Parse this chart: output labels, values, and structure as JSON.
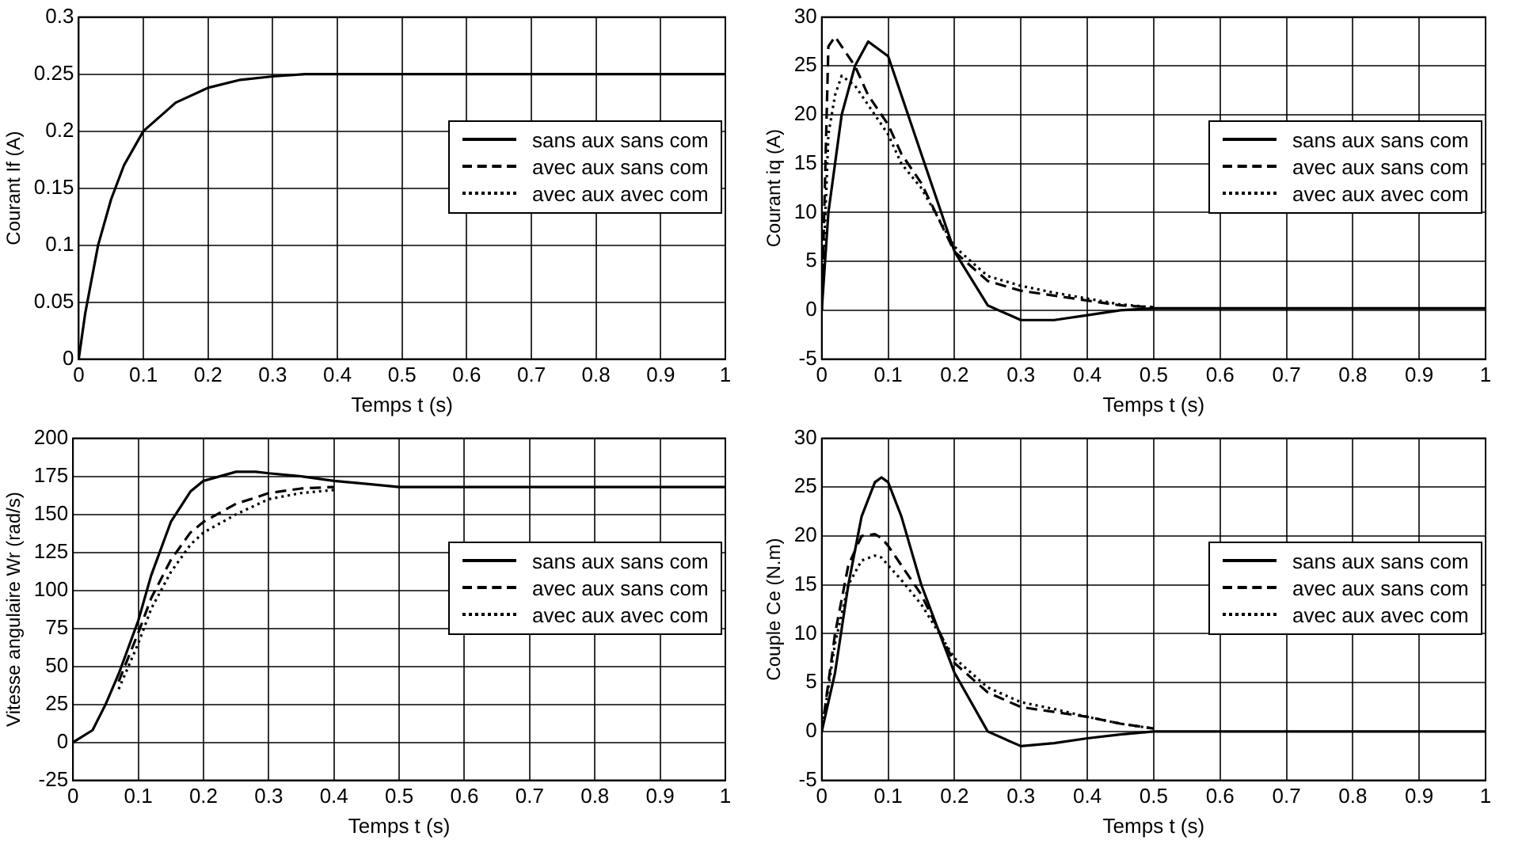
{
  "chart_data": [
    {
      "type": "line",
      "xlabel": "Temps t (s)",
      "ylabel": "Courant If (A)",
      "x": [
        0,
        0.01,
        0.02,
        0.03,
        0.05,
        0.07,
        0.1,
        0.15,
        0.2,
        0.25,
        0.3,
        0.35,
        0.4,
        0.5,
        0.6,
        0.7,
        0.8,
        0.9,
        1
      ],
      "xlim": [
        0,
        1
      ],
      "xticks": [
        0,
        0.1,
        0.2,
        0.3,
        0.4,
        0.5,
        0.6,
        0.7,
        0.8,
        0.9,
        1
      ],
      "ylim": [
        0,
        0.3
      ],
      "yticks": [
        0,
        0.05,
        0.1,
        0.15,
        0.2,
        0.25,
        0.3
      ],
      "grid": true,
      "legend": "right",
      "marker": "none",
      "series": [
        {
          "name": "sans aux sans com",
          "color": "#000000",
          "line_style": "solid",
          "values": [
            0,
            0.04,
            0.07,
            0.1,
            0.14,
            0.17,
            0.2,
            0.225,
            0.238,
            0.245,
            0.248,
            0.25,
            0.25,
            0.25,
            0.25,
            0.25,
            0.25,
            0.25,
            0.25
          ]
        },
        {
          "name": "avec aux sans com",
          "color": "#000000",
          "line_style": "dashed",
          "values": [
            null,
            null,
            null,
            null,
            null,
            null,
            null,
            null,
            null,
            null,
            null,
            null,
            null,
            null,
            null,
            null,
            null,
            null,
            null
          ]
        },
        {
          "name": "avec aux avec com",
          "color": "#000000",
          "line_style": "dotted",
          "values": [
            null,
            null,
            null,
            null,
            null,
            null,
            null,
            null,
            null,
            null,
            null,
            null,
            null,
            null,
            null,
            null,
            null,
            null,
            null
          ]
        }
      ]
    },
    {
      "type": "line",
      "xlabel": "Temps t (s)",
      "ylabel": "Courant iq (A)",
      "x": [
        0,
        0.01,
        0.02,
        0.03,
        0.05,
        0.07,
        0.1,
        0.12,
        0.15,
        0.2,
        0.25,
        0.3,
        0.35,
        0.4,
        0.45,
        0.5,
        0.6,
        0.7,
        0.8,
        0.9,
        1
      ],
      "xlim": [
        0,
        1
      ],
      "xticks": [
        0,
        0.1,
        0.2,
        0.3,
        0.4,
        0.5,
        0.6,
        0.7,
        0.8,
        0.9,
        1
      ],
      "ylim": [
        -5,
        30
      ],
      "yticks": [
        -5,
        0,
        5,
        10,
        15,
        20,
        25,
        30
      ],
      "grid": true,
      "legend": "right",
      "marker": "none",
      "series": [
        {
          "name": "sans aux sans com",
          "color": "#000000",
          "line_style": "solid",
          "values": [
            0,
            10,
            15,
            20,
            25,
            27.5,
            26,
            22,
            16,
            6,
            0.5,
            -1,
            -1,
            -0.5,
            0,
            0.2,
            0.2,
            0.2,
            0.2,
            0.2,
            0.2
          ]
        },
        {
          "name": "avec aux sans com",
          "color": "#000000",
          "line_style": "dashed",
          "values": [
            0,
            27,
            28,
            27,
            25,
            22,
            19,
            16,
            13,
            6,
            3,
            2,
            1.5,
            1,
            0.5,
            0.3,
            null,
            null,
            null,
            null,
            null
          ]
        },
        {
          "name": "avec aux avec com",
          "color": "#000000",
          "line_style": "dotted",
          "values": [
            0,
            18,
            22,
            24,
            23,
            21,
            18,
            15,
            12.5,
            6.5,
            3.5,
            2.5,
            1.8,
            1.2,
            0.6,
            0.3,
            null,
            null,
            null,
            null,
            null
          ]
        }
      ]
    },
    {
      "type": "line",
      "xlabel": "Temps t (s)",
      "ylabel": "Vitesse angulaire Wr (rad/s)",
      "x": [
        0,
        0.03,
        0.05,
        0.07,
        0.1,
        0.12,
        0.15,
        0.18,
        0.2,
        0.25,
        0.28,
        0.3,
        0.35,
        0.4,
        0.45,
        0.5,
        0.6,
        0.7,
        0.8,
        0.9,
        1
      ],
      "xlim": [
        0,
        1
      ],
      "xticks": [
        0,
        0.1,
        0.2,
        0.3,
        0.4,
        0.5,
        0.6,
        0.7,
        0.8,
        0.9,
        1
      ],
      "ylim": [
        -25,
        200
      ],
      "yticks": [
        -25,
        0,
        25,
        50,
        75,
        100,
        125,
        150,
        175,
        200
      ],
      "grid": true,
      "legend": "right",
      "marker": "none",
      "series": [
        {
          "name": "sans aux sans com",
          "color": "#000000",
          "line_style": "solid",
          "values": [
            0,
            8,
            25,
            45,
            80,
            110,
            145,
            165,
            172,
            178,
            178,
            177,
            175,
            172,
            170,
            168,
            168,
            168,
            168,
            168,
            168
          ]
        },
        {
          "name": "avec aux sans com",
          "color": "#000000",
          "line_style": "dashed",
          "values": [
            null,
            null,
            null,
            40,
            72,
            95,
            120,
            138,
            145,
            157,
            161,
            164,
            167,
            168,
            null,
            null,
            null,
            null,
            null,
            null,
            null
          ]
        },
        {
          "name": "avec aux avec com",
          "color": "#000000",
          "line_style": "dotted",
          "values": [
            null,
            null,
            null,
            35,
            65,
            88,
            112,
            130,
            138,
            150,
            156,
            160,
            164,
            166,
            null,
            null,
            null,
            null,
            null,
            null,
            null
          ]
        }
      ]
    },
    {
      "type": "line",
      "xlabel": "Temps t (s)",
      "ylabel": "Couple Ce (N.m)",
      "x": [
        0,
        0.02,
        0.04,
        0.06,
        0.08,
        0.09,
        0.1,
        0.12,
        0.15,
        0.2,
        0.25,
        0.3,
        0.35,
        0.4,
        0.45,
        0.5,
        0.6,
        0.7,
        0.8,
        0.9,
        1
      ],
      "xlim": [
        0,
        1
      ],
      "xticks": [
        0,
        0.1,
        0.2,
        0.3,
        0.4,
        0.5,
        0.6,
        0.7,
        0.8,
        0.9,
        1
      ],
      "ylim": [
        -5,
        30
      ],
      "yticks": [
        -5,
        0,
        5,
        10,
        15,
        20,
        25,
        30
      ],
      "grid": true,
      "legend": "right",
      "marker": "none",
      "series": [
        {
          "name": "sans aux sans com",
          "color": "#000000",
          "line_style": "solid",
          "values": [
            0,
            6,
            15,
            22,
            25.5,
            26,
            25.5,
            22,
            15,
            6,
            0,
            -1.5,
            -1.2,
            -0.7,
            -0.3,
            0,
            0,
            0,
            0,
            0,
            0
          ]
        },
        {
          "name": "avec aux sans com",
          "color": "#000000",
          "line_style": "dashed",
          "values": [
            0,
            10,
            17,
            20,
            20.2,
            19.8,
            19,
            17,
            14,
            7,
            4,
            2.5,
            2,
            1.5,
            0.8,
            0.3,
            null,
            null,
            null,
            null,
            null
          ]
        },
        {
          "name": "avec aux avec com",
          "color": "#000000",
          "line_style": "dotted",
          "values": [
            0,
            9,
            15,
            17.5,
            18,
            17.8,
            17,
            15.5,
            13,
            7.5,
            4.5,
            3,
            2.3,
            1.5,
            0.8,
            0.3,
            null,
            null,
            null,
            null,
            null
          ]
        }
      ]
    }
  ]
}
